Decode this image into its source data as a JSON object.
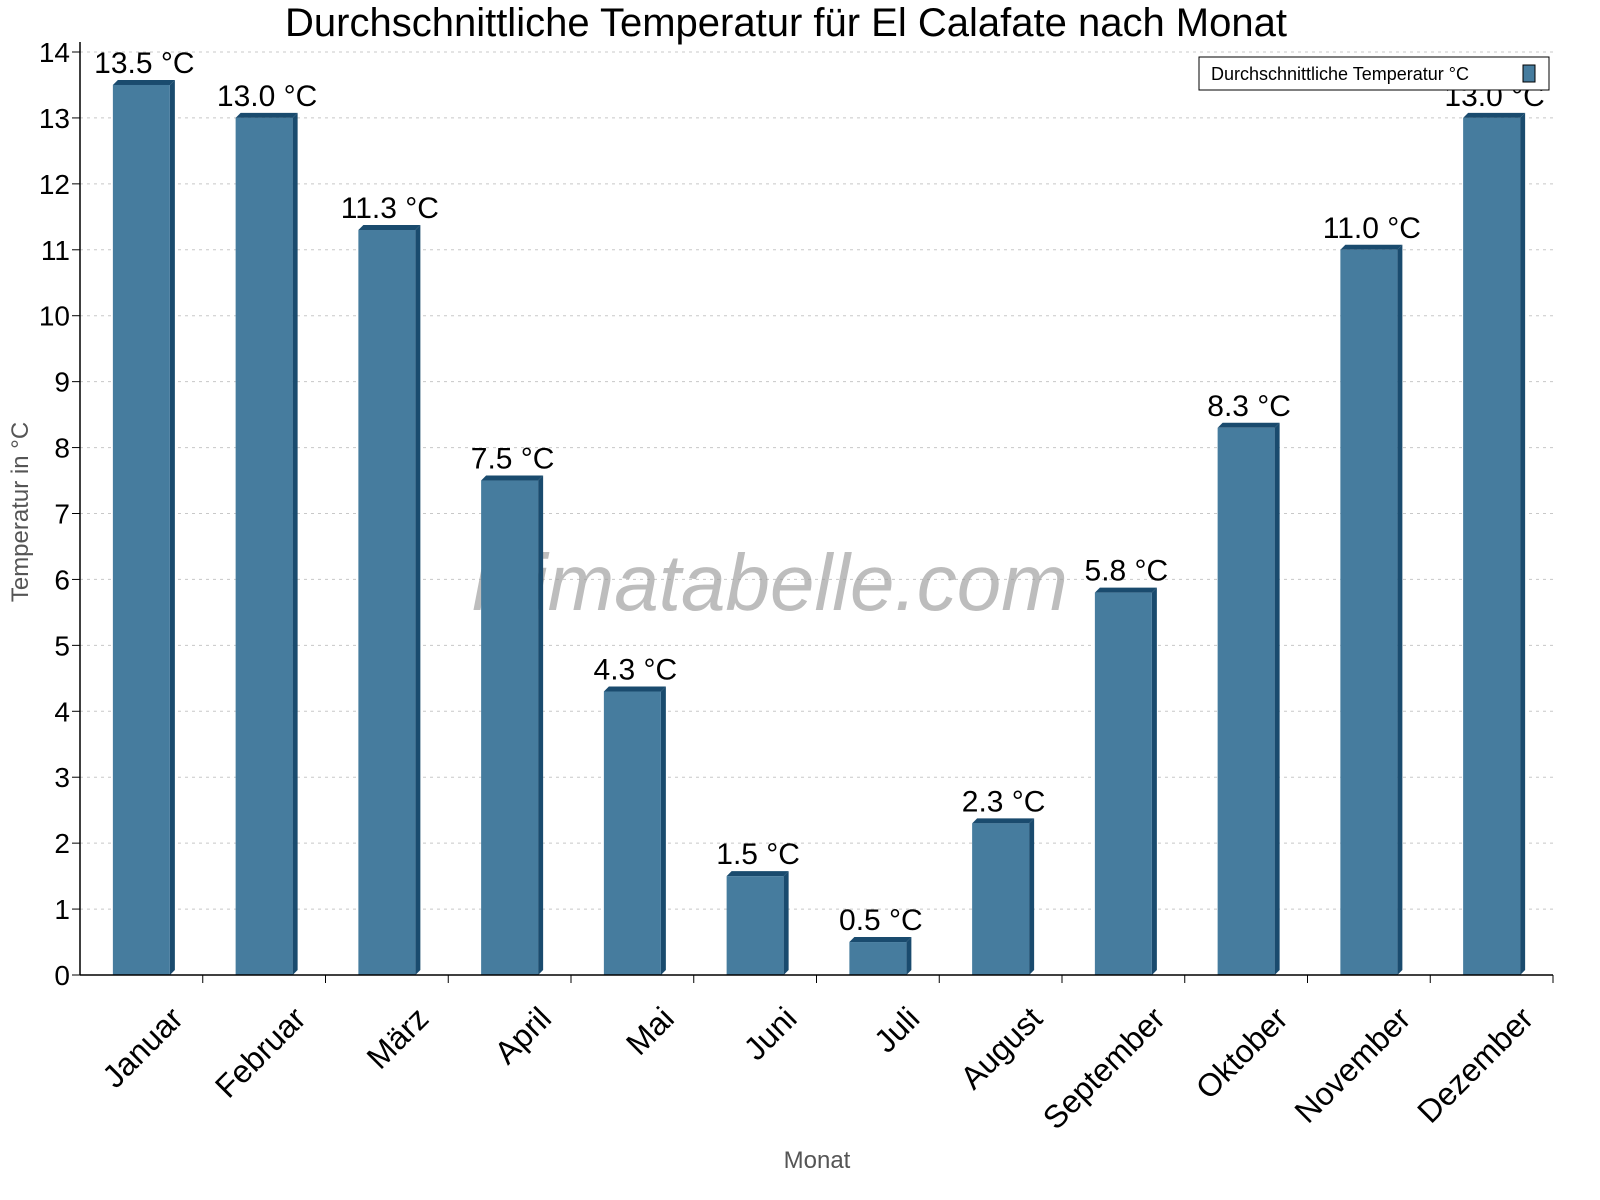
{
  "chart_data": {
    "type": "bar",
    "title": "Durchschnittliche Temperatur für El Calafate nach Monat",
    "xlabel": "Monat",
    "ylabel": "Temperatur in °C",
    "ylim": [
      0,
      14
    ],
    "yticks": [
      0,
      1,
      2,
      3,
      4,
      5,
      6,
      7,
      8,
      9,
      10,
      11,
      12,
      13,
      14
    ],
    "grid": true,
    "legend_position": "top-right",
    "categories": [
      "Januar",
      "Februar",
      "März",
      "April",
      "Mai",
      "Juni",
      "Juli",
      "August",
      "September",
      "Oktober",
      "November",
      "Dezember"
    ],
    "series": [
      {
        "name": "Durchschnittliche Temperatur °C",
        "values": [
          13.5,
          13.0,
          11.3,
          7.5,
          4.3,
          1.5,
          0.5,
          2.3,
          5.8,
          8.3,
          11.0,
          13.0
        ],
        "data_labels": [
          "13.5 °C",
          "13.0 °C",
          "11.3 °C",
          "7.5 °C",
          "4.3 °C",
          "1.5 °C",
          "0.5 °C",
          "2.3 °C",
          "5.8 °C",
          "8.3 °C",
          "11.0 °C",
          "13.0 °C"
        ]
      }
    ],
    "colors": {
      "bar": "#467c9e",
      "bar_side": "#1a4b6e"
    },
    "watermark": "klimatabelle.com"
  }
}
